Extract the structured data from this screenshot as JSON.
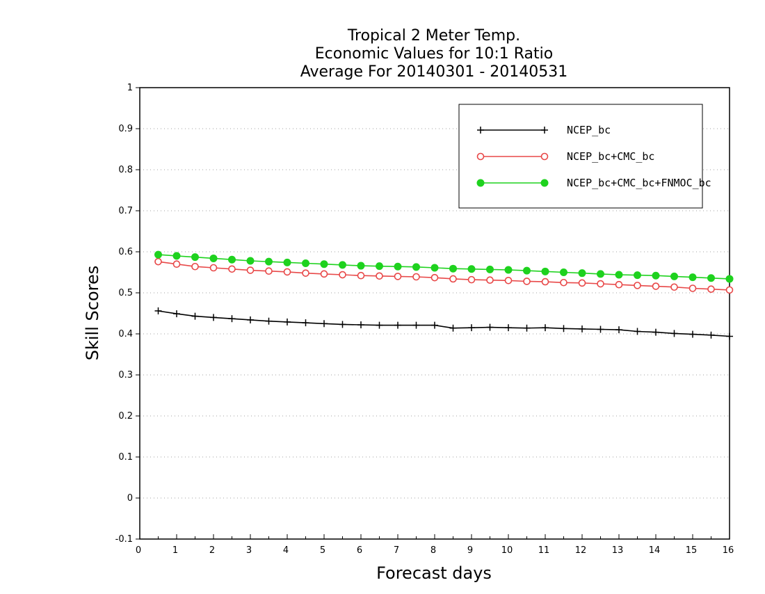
{
  "chart_data": {
    "type": "line",
    "title_lines": [
      "Tropical 2 Meter Temp.",
      "Economic Values for 10:1 Ratio",
      "Average For 20140301 - 20140531"
    ],
    "xlabel": "Forecast days",
    "ylabel": "Skill Scores",
    "xlim": [
      0,
      16
    ],
    "ylim": [
      -0.1,
      1
    ],
    "x_ticks": [
      0,
      1,
      2,
      3,
      4,
      5,
      6,
      7,
      8,
      9,
      10,
      11,
      12,
      13,
      14,
      15,
      16
    ],
    "y_ticks": [
      "-0.1",
      "0",
      "0.1",
      "0.2",
      "0.3",
      "0.4",
      "0.5",
      "0.6",
      "0.7",
      "0.8",
      "0.9",
      "1"
    ],
    "grid": "horizontal dotted",
    "legend_position": "top-right",
    "x": [
      0.5,
      1,
      1.5,
      2,
      2.5,
      3,
      3.5,
      4,
      4.5,
      5,
      5.5,
      6,
      6.5,
      7,
      7.5,
      8,
      8.5,
      9,
      9.5,
      10,
      10.5,
      11,
      11.5,
      12,
      12.5,
      13,
      13.5,
      14,
      14.5,
      15,
      15.5,
      16
    ],
    "series": [
      {
        "name": "NCEP_bc",
        "color": "#000000",
        "marker": "plus",
        "values": [
          0.456,
          0.449,
          0.443,
          0.44,
          0.437,
          0.434,
          0.431,
          0.429,
          0.427,
          0.425,
          0.423,
          0.422,
          0.421,
          0.421,
          0.421,
          0.421,
          0.414,
          0.415,
          0.416,
          0.415,
          0.414,
          0.415,
          0.413,
          0.412,
          0.411,
          0.41,
          0.406,
          0.404,
          0.401,
          0.399,
          0.397,
          0.394
        ]
      },
      {
        "name": "NCEP_bc+CMC_bc",
        "color": "#e84848",
        "marker": "open-circle",
        "values": [
          0.576,
          0.57,
          0.564,
          0.561,
          0.558,
          0.555,
          0.553,
          0.551,
          0.548,
          0.546,
          0.544,
          0.542,
          0.541,
          0.54,
          0.539,
          0.537,
          0.534,
          0.532,
          0.531,
          0.53,
          0.528,
          0.527,
          0.525,
          0.524,
          0.522,
          0.52,
          0.518,
          0.516,
          0.514,
          0.511,
          0.509,
          0.507
        ]
      },
      {
        "name": "NCEP_bc+CMC_bc+FNMOC_bc",
        "color": "#1ed21e",
        "marker": "filled-circle",
        "values": [
          0.593,
          0.59,
          0.587,
          0.584,
          0.581,
          0.578,
          0.576,
          0.574,
          0.572,
          0.57,
          0.568,
          0.566,
          0.565,
          0.564,
          0.563,
          0.561,
          0.559,
          0.558,
          0.557,
          0.556,
          0.554,
          0.552,
          0.55,
          0.548,
          0.546,
          0.544,
          0.543,
          0.542,
          0.54,
          0.538,
          0.536,
          0.534
        ]
      }
    ]
  }
}
